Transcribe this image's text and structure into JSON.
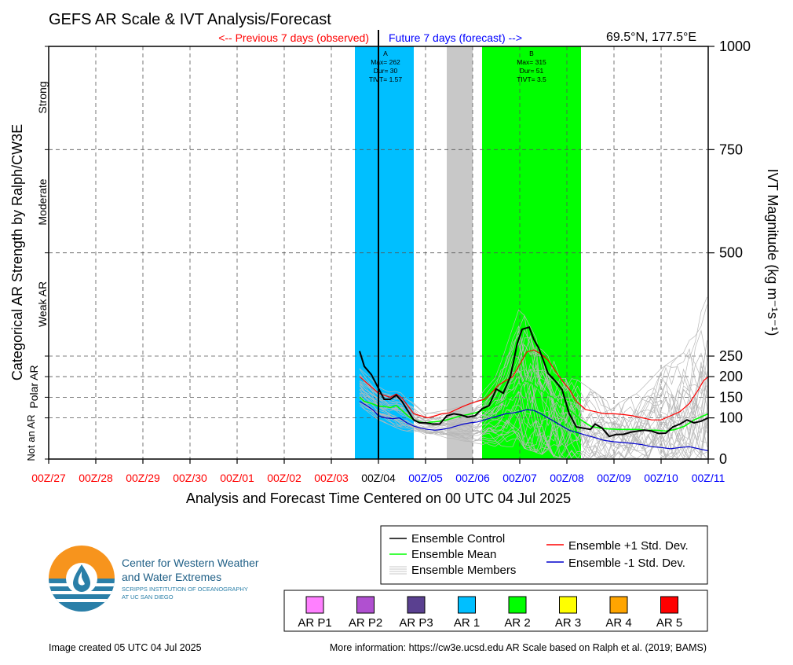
{
  "header": {
    "title": "GEFS AR Scale & IVT Analysis/Forecast",
    "location": "69.5°N, 177.5°E",
    "previous_label": "<-- Previous 7 days (observed)",
    "future_label": "Future 7 days (forecast) -->"
  },
  "colors": {
    "previous": "#ff0000",
    "future": "#0000ff",
    "ar1": "#00bfff",
    "ar2": "#00ff00",
    "gray_band": "#c8c8c8",
    "control": "#000000",
    "mean": "#00ff00",
    "plus_sd": "#ff0000",
    "minus_sd": "#0000cc",
    "members": "#b8b8b8"
  },
  "axes": {
    "xlabel": "Analysis and Forecast Time Centered on 00 UTC 04 Jul 2025",
    "ylabel_left": "Categorical AR Strength by Ralph/CW3E",
    "ylabel_right": "IVT Magnitude (kg m⁻¹s⁻¹)",
    "x_ticks": [
      "00Z/27",
      "00Z/28",
      "00Z/29",
      "00Z/30",
      "00Z/01",
      "00Z/02",
      "00Z/03",
      "00Z/04",
      "00Z/05",
      "00Z/06",
      "00Z/07",
      "00Z/08",
      "00Z/09",
      "00Z/10",
      "00Z/11"
    ],
    "y_ticks": [
      "0",
      "100",
      "150",
      "200",
      "250",
      "500",
      "750",
      "1000"
    ],
    "categories": [
      {
        "label": "Strong"
      },
      {
        "label": "Moderate"
      },
      {
        "label": "Weak AR"
      },
      {
        "label": "Polar AR"
      },
      {
        "label": "Not an AR"
      }
    ]
  },
  "events": [
    {
      "id": "A",
      "max": "Max= 262",
      "dur": "Dur= 30",
      "tivt": "TIVT= 1.57"
    },
    {
      "id": "B",
      "max": "Max= 315",
      "dur": "Dur= 51",
      "tivt": "TIVT= 3.5"
    }
  ],
  "legend": {
    "control": "Ensemble Control",
    "mean": "Ensemble Mean",
    "members": "Ensemble Members",
    "plus_sd": "Ensemble +1 Std. Dev.",
    "minus_sd": "Ensemble -1 Std. Dev."
  },
  "ar_legend": [
    {
      "label": "AR P1",
      "color": "#ff80ff"
    },
    {
      "label": "AR P2",
      "color": "#b050d0"
    },
    {
      "label": "AR P3",
      "color": "#5a4090"
    },
    {
      "label": "AR 1",
      "color": "#00bfff"
    },
    {
      "label": "AR 2",
      "color": "#00ff00"
    },
    {
      "label": "AR 3",
      "color": "#ffff00"
    },
    {
      "label": "AR 4",
      "color": "#ffa500"
    },
    {
      "label": "AR 5",
      "color": "#ff0000"
    }
  ],
  "logo": {
    "line1": "Center for Western Weather",
    "line2": "and Water Extremes",
    "line3": "SCRIPPS INSTITUTION OF OCEANOGRAPHY",
    "line4": "AT UC SAN DIEGO"
  },
  "footer": {
    "created": "Image created 05 UTC 04 Jul 2025",
    "info": "More information: https://cw3e.ucsd.edu AR Scale based on Ralph et al. (2019; BAMS)"
  },
  "chart_data": {
    "type": "line",
    "x_units": "days relative to 00Z/04 Jul 2025",
    "x_range": [
      -7,
      7
    ],
    "y_units": "kg m-1 s-1",
    "ylim": [
      0,
      1000
    ],
    "y_scale": "piecewise: 0-250 expanded, 250-1000 compressed",
    "bands": [
      {
        "name": "AR 1",
        "x_start": -0.5,
        "x_end": 0.75
      },
      {
        "name": "gray",
        "x_start": 1.45,
        "x_end": 2.0
      },
      {
        "name": "AR 2",
        "x_start": 2.2,
        "x_end": 4.3
      }
    ],
    "series": [
      {
        "name": "Ensemble Control",
        "x": [
          -0.4,
          -0.3,
          -0.15,
          0,
          0.12,
          0.25,
          0.38,
          0.5,
          0.62,
          0.75,
          0.87,
          1.0,
          1.15,
          1.3,
          1.45,
          1.6,
          1.75,
          1.9,
          2.05,
          2.2,
          2.35,
          2.5,
          2.65,
          2.8,
          2.95,
          3.05,
          3.2,
          3.3,
          3.4,
          3.5,
          3.6,
          3.75,
          3.9,
          4.05,
          4.2,
          4.35,
          4.5,
          4.6,
          4.75,
          4.9,
          5.05,
          5.2,
          5.35,
          5.5,
          5.65,
          5.8,
          5.95,
          6.1,
          6.25,
          6.4,
          6.55,
          6.7,
          6.85,
          7.0
        ],
        "y": [
          262,
          225,
          205,
          172,
          145,
          145,
          155,
          140,
          118,
          95,
          88,
          88,
          85,
          85,
          105,
          110,
          107,
          102,
          105,
          122,
          130,
          170,
          160,
          200,
          282,
          315,
          320,
          290,
          270,
          240,
          208,
          190,
          168,
          110,
          78,
          75,
          72,
          85,
          75,
          55,
          60,
          60,
          65,
          68,
          70,
          68,
          62,
          63,
          78,
          85,
          95,
          88,
          92,
          100
        ]
      },
      {
        "name": "Ensemble Mean",
        "x": [
          -0.4,
          -0.3,
          -0.15,
          0,
          0.12,
          0.25,
          0.38,
          0.5,
          0.62,
          0.75,
          0.87,
          1.0,
          1.15,
          1.3,
          1.45,
          1.6,
          1.75,
          1.9,
          2.05,
          2.2,
          2.35,
          2.5,
          2.65,
          2.8,
          2.95,
          3.1,
          3.25,
          3.4,
          3.55,
          3.7,
          3.85,
          4.0,
          4.15,
          4.3,
          4.5,
          4.7,
          4.9,
          5.1,
          5.3,
          5.5,
          5.7,
          5.9,
          6.1,
          6.3,
          6.5,
          6.7,
          6.9,
          7.0
        ],
        "y": [
          150,
          140,
          135,
          128,
          128,
          125,
          130,
          118,
          105,
          95,
          90,
          88,
          90,
          92,
          95,
          100,
          105,
          108,
          112,
          118,
          122,
          130,
          140,
          150,
          165,
          190,
          185,
          170,
          158,
          150,
          135,
          125,
          110,
          95,
          80,
          75,
          73,
          72,
          72,
          72,
          70,
          70,
          68,
          72,
          80,
          95,
          105,
          110
        ]
      },
      {
        "name": "Ensemble +1 Std. Dev.",
        "x": [
          -0.4,
          -0.25,
          -0.1,
          0,
          0.12,
          0.25,
          0.38,
          0.5,
          0.62,
          0.75,
          0.9,
          1.05,
          1.2,
          1.35,
          1.5,
          1.65,
          1.8,
          1.95,
          2.1,
          2.25,
          2.4,
          2.55,
          2.7,
          2.85,
          3.0,
          3.15,
          3.3,
          3.45,
          3.6,
          3.75,
          3.9,
          4.05,
          4.2,
          4.4,
          4.6,
          4.8,
          5.0,
          5.2,
          5.4,
          5.6,
          5.8,
          6.0,
          6.2,
          6.4,
          6.6,
          6.8,
          6.9,
          7.0
        ],
        "y": [
          200,
          185,
          170,
          160,
          155,
          150,
          158,
          148,
          130,
          110,
          105,
          100,
          105,
          110,
          112,
          120,
          128,
          135,
          140,
          145,
          160,
          180,
          190,
          200,
          230,
          260,
          265,
          255,
          240,
          215,
          190,
          170,
          140,
          120,
          115,
          110,
          110,
          108,
          105,
          100,
          95,
          95,
          105,
          115,
          135,
          170,
          190,
          200
        ]
      },
      {
        "name": "Ensemble -1 Std. Dev.",
        "x": [
          -0.4,
          -0.25,
          -0.1,
          0,
          0.15,
          0.3,
          0.45,
          0.6,
          0.75,
          0.9,
          1.05,
          1.2,
          1.35,
          1.5,
          1.65,
          1.8,
          1.95,
          2.1,
          2.25,
          2.4,
          2.55,
          2.7,
          2.85,
          3.0,
          3.15,
          3.3,
          3.45,
          3.6,
          3.75,
          3.9,
          4.05,
          4.2,
          4.4,
          4.6,
          4.8,
          5.0,
          5.2,
          5.4,
          5.6,
          5.8,
          6.0,
          6.2,
          6.4,
          6.6,
          6.8,
          7.0
        ],
        "y": [
          140,
          130,
          118,
          105,
          100,
          98,
          100,
          88,
          80,
          75,
          72,
          70,
          72,
          75,
          80,
          85,
          88,
          90,
          95,
          100,
          105,
          110,
          112,
          115,
          120,
          118,
          110,
          100,
          90,
          80,
          70,
          65,
          58,
          52,
          45,
          42,
          40,
          38,
          35,
          30,
          28,
          25,
          28,
          30,
          25,
          20
        ]
      }
    ],
    "members_envelope": {
      "name": "Ensemble Members",
      "x": [
        -0.4,
        0,
        0.5,
        1.0,
        1.5,
        2.0,
        2.5,
        3.0,
        3.5,
        4.0,
        4.5,
        5.0,
        5.5,
        6.0,
        6.5,
        7.0
      ],
      "low": [
        130,
        95,
        70,
        60,
        50,
        40,
        30,
        30,
        10,
        0,
        0,
        0,
        0,
        0,
        0,
        0
      ],
      "high": [
        225,
        175,
        160,
        110,
        120,
        135,
        200,
        370,
        260,
        210,
        170,
        130,
        160,
        220,
        260,
        400
      ]
    }
  }
}
